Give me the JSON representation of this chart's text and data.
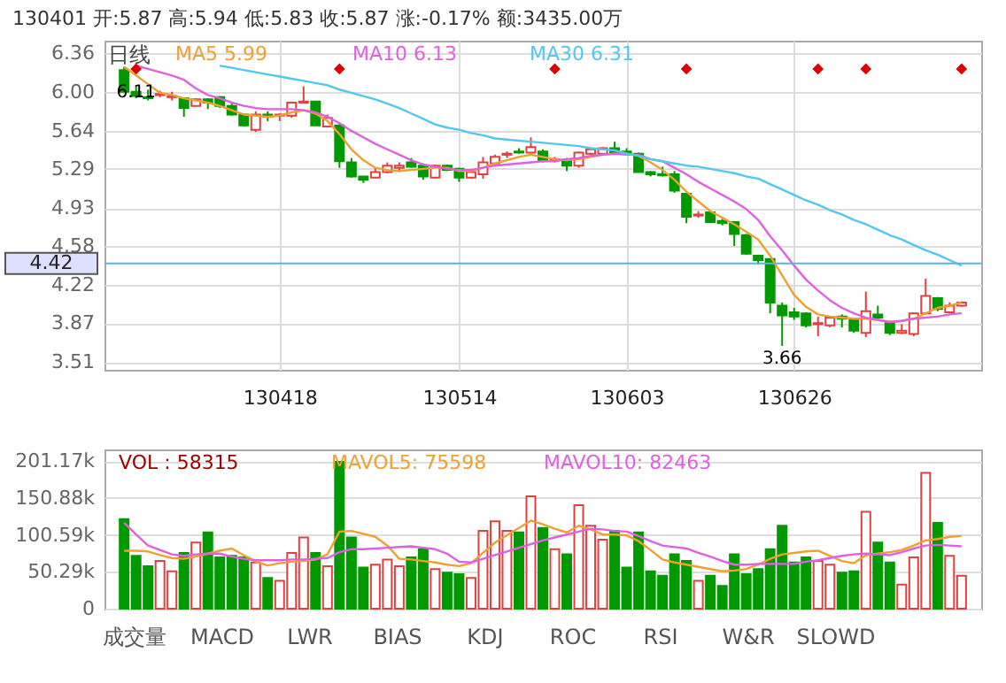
{
  "chart_data": [
    {
      "type": "candlestick",
      "title": "130401    开:5.87    高:5.94    低:5.83    收:5.87    涨:-0.17%    额:3435.00万",
      "categories": [
        null,
        null,
        null,
        null,
        null,
        null,
        null,
        null,
        null,
        null,
        null,
        null,
        null,
        "130418",
        null,
        null,
        null,
        null,
        null,
        null,
        null,
        null,
        null,
        null,
        null,
        null,
        null,
        null,
        "130514",
        null,
        null,
        null,
        null,
        null,
        null,
        null,
        null,
        null,
        null,
        null,
        null,
        null,
        "130603",
        null,
        null,
        null,
        null,
        null,
        null,
        null,
        null,
        null,
        null,
        null,
        null,
        null,
        "130626",
        null,
        null,
        null,
        null,
        null,
        null,
        null,
        null,
        null,
        null,
        null,
        null,
        null,
        null
      ],
      "ohlc": [
        [
          6.2,
          6.23,
          6.0,
          6.0
        ],
        [
          6.0,
          6.05,
          5.94,
          5.96
        ],
        [
          5.95,
          6.02,
          5.92,
          5.94
        ],
        [
          5.97,
          6.01,
          5.95,
          5.98
        ],
        [
          5.95,
          6.0,
          5.92,
          5.96
        ],
        [
          5.94,
          5.94,
          5.77,
          5.85
        ],
        [
          5.87,
          5.94,
          5.87,
          5.93
        ],
        [
          5.93,
          5.94,
          5.84,
          5.9
        ],
        [
          5.95,
          5.96,
          5.85,
          5.87
        ],
        [
          5.87,
          5.9,
          5.78,
          5.79
        ],
        [
          5.79,
          5.8,
          5.68,
          5.69
        ],
        [
          5.65,
          5.82,
          5.63,
          5.79
        ],
        [
          5.79,
          5.82,
          5.73,
          5.77
        ],
        [
          5.78,
          5.8,
          5.73,
          5.79
        ],
        [
          5.78,
          5.91,
          5.76,
          5.9
        ],
        [
          5.9,
          6.05,
          5.9,
          5.91
        ],
        [
          5.91,
          5.91,
          5.69,
          5.69
        ],
        [
          5.68,
          5.79,
          5.67,
          5.76
        ],
        [
          5.69,
          5.7,
          5.3,
          5.36
        ],
        [
          5.35,
          5.39,
          5.21,
          5.22
        ],
        [
          5.22,
          5.22,
          5.16,
          5.19
        ],
        [
          5.21,
          5.3,
          5.21,
          5.26
        ],
        [
          5.26,
          5.35,
          5.25,
          5.32
        ],
        [
          5.3,
          5.35,
          5.26,
          5.32
        ],
        [
          5.35,
          5.39,
          5.3,
          5.31
        ],
        [
          5.32,
          5.34,
          5.19,
          5.22
        ],
        [
          5.21,
          5.33,
          5.2,
          5.32
        ],
        [
          5.32,
          5.33,
          5.27,
          5.28
        ],
        [
          5.29,
          5.3,
          5.17,
          5.21
        ],
        [
          5.21,
          5.27,
          5.2,
          5.26
        ],
        [
          5.24,
          5.4,
          5.2,
          5.35
        ],
        [
          5.34,
          5.42,
          5.32,
          5.4
        ],
        [
          5.42,
          5.45,
          5.39,
          5.43
        ],
        [
          5.45,
          5.48,
          5.43,
          5.44
        ],
        [
          5.44,
          5.58,
          5.43,
          5.49
        ],
        [
          5.45,
          5.47,
          5.35,
          5.37
        ],
        [
          5.37,
          5.4,
          5.35,
          5.38
        ],
        [
          5.37,
          5.39,
          5.27,
          5.32
        ],
        [
          5.32,
          5.45,
          5.3,
          5.44
        ],
        [
          5.43,
          5.48,
          5.42,
          5.47
        ],
        [
          5.43,
          5.49,
          5.42,
          5.48
        ],
        [
          5.48,
          5.54,
          5.42,
          5.43
        ],
        [
          5.45,
          5.48,
          5.42,
          5.43
        ],
        [
          5.43,
          5.44,
          5.26,
          5.26
        ],
        [
          5.26,
          5.27,
          5.22,
          5.24
        ],
        [
          5.24,
          5.31,
          5.22,
          5.23
        ],
        [
          5.24,
          5.27,
          5.07,
          5.09
        ],
        [
          5.06,
          5.07,
          4.79,
          4.85
        ],
        [
          4.86,
          4.9,
          4.84,
          4.87
        ],
        [
          4.89,
          4.9,
          4.79,
          4.8
        ],
        [
          4.81,
          4.83,
          4.77,
          4.79
        ],
        [
          4.8,
          4.8,
          4.58,
          4.69
        ],
        [
          4.68,
          4.69,
          4.5,
          4.51
        ],
        [
          4.49,
          4.5,
          4.41,
          4.45
        ],
        [
          4.46,
          4.46,
          3.96,
          4.06
        ],
        [
          4.03,
          4.06,
          3.66,
          3.94
        ],
        [
          3.97,
          4.01,
          3.9,
          3.93
        ],
        [
          3.96,
          3.97,
          3.83,
          3.85
        ],
        [
          3.86,
          3.93,
          3.75,
          3.87
        ],
        [
          3.85,
          3.93,
          3.83,
          3.92
        ],
        [
          3.93,
          3.95,
          3.83,
          3.91
        ],
        [
          3.9,
          3.91,
          3.78,
          3.8
        ],
        [
          3.78,
          4.16,
          3.74,
          3.98
        ],
        [
          3.95,
          4.03,
          3.91,
          3.92
        ],
        [
          3.88,
          3.89,
          3.76,
          3.78
        ],
        [
          3.78,
          3.86,
          3.77,
          3.8
        ],
        [
          3.77,
          3.97,
          3.75,
          3.96
        ],
        [
          3.96,
          4.28,
          3.95,
          4.12
        ],
        [
          4.1,
          4.11,
          3.98,
          4.0
        ],
        [
          3.97,
          4.06,
          3.96,
          4.03
        ],
        [
          4.03,
          4.07,
          4.02,
          4.06
        ]
      ],
      "colors": [
        "#009900",
        "#009900",
        "#009900",
        "#e04040",
        "#e04040",
        "#009900",
        "#e04040",
        "#009900",
        "#009900",
        "#009900",
        "#009900",
        "#e04040",
        "#009900",
        "#e04040",
        "#e04040",
        "#e04040",
        "#009900",
        "#e04040",
        "#009900",
        "#009900",
        "#009900",
        "#e04040",
        "#e04040",
        "#e04040",
        "#009900",
        "#009900",
        "#e04040",
        "#009900",
        "#009900",
        "#e04040",
        "#e04040",
        "#e04040",
        "#e04040",
        "#009900",
        "#e04040",
        "#009900",
        "#e04040",
        "#009900",
        "#e04040",
        "#e04040",
        "#e04040",
        "#009900",
        "#009900",
        "#009900",
        "#009900",
        "#009900",
        "#009900",
        "#009900",
        "#e04040",
        "#009900",
        "#009900",
        "#009900",
        "#009900",
        "#009900",
        "#009900",
        "#009900",
        "#009900",
        "#009900",
        "#e04040",
        "#e04040",
        "#009900",
        "#009900",
        "#e04040",
        "#009900",
        "#009900",
        "#e04040",
        "#e04040",
        "#e04040",
        "#009900",
        "#e04040",
        "#e04040"
      ],
      "series": [
        {
          "name": "MA5  5.99",
          "type": "line",
          "color": "#f0a030",
          "values": [
            6.23,
            6.15,
            6.07,
            5.99,
            5.97,
            5.94,
            5.92,
            5.9,
            5.87,
            5.83,
            5.79,
            5.78,
            5.77,
            5.78,
            5.81,
            5.83,
            5.8,
            5.73,
            5.61,
            5.47,
            5.37,
            5.3,
            5.28,
            5.27,
            5.28,
            5.29,
            5.3,
            5.3,
            5.27,
            5.27,
            5.3,
            5.34,
            5.37,
            5.4,
            5.42,
            5.4,
            5.38,
            5.37,
            5.38,
            5.4,
            5.42,
            5.43,
            5.43,
            5.41,
            5.35,
            5.28,
            5.19,
            5.08,
            4.99,
            4.9,
            4.84,
            4.78,
            4.71,
            4.64,
            4.49,
            4.31,
            4.13,
            4.02,
            3.95,
            3.93,
            3.92,
            3.91,
            3.91,
            3.9,
            3.88,
            3.89,
            3.91,
            3.96,
            4.01,
            4.03,
            4.06
          ]
        },
        {
          "name": "MA10  6.13",
          "type": "line",
          "color": "#e060e0",
          "values": [
            null,
            6.24,
            6.21,
            6.18,
            6.15,
            6.11,
            6.03,
            5.97,
            5.94,
            5.9,
            5.87,
            5.85,
            5.84,
            5.84,
            5.84,
            5.83,
            5.81,
            5.77,
            5.71,
            5.64,
            5.58,
            5.52,
            5.47,
            5.42,
            5.37,
            5.33,
            5.31,
            5.29,
            5.28,
            5.28,
            5.3,
            5.32,
            5.33,
            5.34,
            5.35,
            5.36,
            5.36,
            5.38,
            5.39,
            5.41,
            5.42,
            5.43,
            5.42,
            5.42,
            5.38,
            5.36,
            5.3,
            5.24,
            5.17,
            5.11,
            5.05,
            4.99,
            4.92,
            4.82,
            4.67,
            4.54,
            4.4,
            4.27,
            4.17,
            4.08,
            4.01,
            3.96,
            3.92,
            3.9,
            3.88,
            3.89,
            3.91,
            3.92,
            3.93,
            3.95,
            3.96
          ]
        },
        {
          "name": "MA30  6.31",
          "type": "line",
          "color": "#50c8f0",
          "values": [
            null,
            null,
            null,
            null,
            null,
            null,
            null,
            null,
            6.24,
            6.22,
            6.2,
            6.18,
            6.16,
            6.14,
            6.12,
            6.1,
            6.08,
            6.06,
            6.02,
            5.99,
            5.96,
            5.93,
            5.89,
            5.85,
            5.8,
            5.75,
            5.7,
            5.67,
            5.65,
            5.62,
            5.6,
            5.57,
            5.56,
            5.55,
            5.54,
            5.53,
            5.52,
            5.51,
            5.5,
            5.48,
            5.47,
            5.46,
            5.43,
            5.41,
            5.38,
            5.36,
            5.34,
            5.32,
            5.31,
            5.29,
            5.27,
            5.25,
            5.22,
            5.2,
            5.15,
            5.1,
            5.05,
            5.0,
            4.96,
            4.91,
            4.87,
            4.82,
            4.78,
            4.73,
            4.68,
            4.64,
            4.59,
            4.54,
            4.5,
            4.45,
            4.4
          ]
        },
        {
          "type": "scatter",
          "marker": "diamond",
          "color": "#dd0000",
          "values": [
            null,
            6.21,
            null,
            null,
            null,
            null,
            null,
            null,
            null,
            null,
            null,
            null,
            null,
            null,
            null,
            null,
            null,
            null,
            6.21,
            null,
            null,
            null,
            null,
            null,
            null,
            null,
            null,
            null,
            null,
            null,
            null,
            null,
            null,
            null,
            null,
            null,
            6.21,
            null,
            null,
            null,
            null,
            null,
            null,
            null,
            null,
            null,
            null,
            6.21,
            null,
            null,
            null,
            null,
            null,
            null,
            null,
            null,
            null,
            null,
            6.21,
            null,
            null,
            null,
            6.21,
            null,
            null,
            null,
            null,
            null,
            null,
            null,
            6.21
          ]
        }
      ],
      "ylim": [
        3.44,
        6.47
      ],
      "yticks": [
        6.36,
        {
          "value": 6,
          "label": "6.00"
        },
        5.64,
        5.29,
        4.93,
        4.58,
        4.22,
        3.87,
        3.51
      ],
      "ref_lines": [
        {
          "axis": "y",
          "value": 4.42,
          "label": "4.42",
          "color": "#5ab4e0"
        }
      ],
      "annotations": [
        "日线",
        {
          "text": "6.11",
          "y": 6.11
        },
        {
          "text": "3.66",
          "y": 3.66
        }
      ],
      "grid": true,
      "legend": "top"
    },
    {
      "type": "bar",
      "categories": [
        null,
        null,
        null,
        null,
        null,
        null,
        null,
        null,
        null,
        null,
        null,
        null,
        null,
        null,
        null,
        null,
        null,
        null,
        null,
        null,
        null,
        null,
        null,
        null,
        null,
        null,
        null,
        null,
        null,
        null,
        null,
        null,
        null,
        null,
        null,
        null,
        null,
        null,
        null,
        null,
        null,
        null,
        null,
        null,
        null,
        null,
        null,
        null,
        null,
        null,
        null,
        null,
        null,
        null,
        null,
        null,
        null,
        null,
        null,
        null,
        null,
        null,
        null,
        null,
        null,
        null,
        null,
        null,
        null,
        null,
        null
      ],
      "series": [
        {
          "name": "VOL :  58315",
          "type": "bar",
          "values": [
            122,
            72,
            58,
            65,
            51,
            76,
            90,
            104,
            70,
            72,
            70,
            63,
            42,
            38,
            76,
            97,
            76,
            58,
            200,
            97,
            56,
            60,
            67,
            58,
            70,
            81,
            54,
            49,
            47,
            42,
            106,
            119,
            106,
            104,
            153,
            110,
            81,
            74,
            141,
            113,
            94,
            106,
            56,
            104,
            51,
            45,
            74,
            65,
            38,
            45,
            31,
            74,
            47,
            54,
            81,
            113,
            63,
            70,
            65,
            60,
            49,
            51,
            132,
            90,
            63,
            33,
            70,
            185,
            117,
            72,
            45
          ],
          "colors": [
            "#009900",
            "#009900",
            "#009900",
            "#e04040",
            "#e04040",
            "#009900",
            "#e04040",
            "#009900",
            "#009900",
            "#009900",
            "#009900",
            "#e04040",
            "#009900",
            "#e04040",
            "#e04040",
            "#e04040",
            "#009900",
            "#e04040",
            "#009900",
            "#009900",
            "#009900",
            "#e04040",
            "#e04040",
            "#e04040",
            "#009900",
            "#009900",
            "#e04040",
            "#009900",
            "#009900",
            "#e04040",
            "#e04040",
            "#e04040",
            "#e04040",
            "#009900",
            "#e04040",
            "#009900",
            "#e04040",
            "#009900",
            "#e04040",
            "#e04040",
            "#e04040",
            "#009900",
            "#009900",
            "#009900",
            "#009900",
            "#009900",
            "#009900",
            "#009900",
            "#e04040",
            "#009900",
            "#009900",
            "#009900",
            "#009900",
            "#009900",
            "#009900",
            "#009900",
            "#009900",
            "#009900",
            "#e04040",
            "#e04040",
            "#009900",
            "#009900",
            "#e04040",
            "#009900",
            "#009900",
            "#e04040",
            "#e04040",
            "#e04040",
            "#009900",
            "#e04040",
            "#e04040"
          ]
        },
        {
          "name": "MAVOL5:  75598",
          "type": "line",
          "color": "#f0a030",
          "values": [
            79,
            79,
            78,
            73,
            69,
            68,
            71,
            75,
            79,
            82,
            73,
            64,
            59,
            62,
            64,
            65,
            67,
            74,
            105,
            106,
            102,
            98,
            86,
            68,
            67,
            65,
            63,
            60,
            58,
            62,
            76,
            90,
            100,
            110,
            120,
            115,
            109,
            104,
            113,
            108,
            101,
            101,
            100,
            92,
            80,
            67,
            63,
            60,
            57,
            54,
            51,
            52,
            54,
            60,
            68,
            74,
            76,
            78,
            79,
            72,
            65,
            62,
            73,
            75,
            77,
            80,
            86,
            93,
            95,
            98,
            99
          ]
        },
        {
          "name": "MAVOL10:  82463",
          "type": "line",
          "color": "#e060e0",
          "values": [
            117,
            101,
            86,
            80,
            74,
            72,
            74,
            75,
            75,
            71,
            68,
            66,
            66,
            66,
            67,
            67,
            68,
            69,
            77,
            81,
            81,
            82,
            83,
            84,
            85,
            83,
            81,
            75,
            64,
            63,
            68,
            73,
            78,
            83,
            88,
            93,
            97,
            101,
            105,
            109,
            108,
            106,
            105,
            99,
            92,
            86,
            84,
            82,
            76,
            71,
            65,
            60,
            60,
            61,
            61,
            61,
            61,
            64,
            66,
            69,
            72,
            74,
            75,
            74,
            73,
            77,
            82,
            86,
            87,
            86,
            85
          ]
        }
      ],
      "ylim": [
        0,
        217
      ],
      "yticks": [
        0,
        {
          "value": 50.29,
          "label": "50.29k"
        },
        {
          "value": 100.59,
          "label": "100.59k"
        },
        {
          "value": 150.88,
          "label": "150.88k"
        },
        {
          "value": 201.17,
          "label": "201.17k"
        }
      ],
      "annotations": [
        "成交量",
        "MACD",
        "LWR",
        "BIAS",
        "KDJ",
        "ROC",
        "RSI",
        "W&R",
        "SLOWD"
      ],
      "grid": true,
      "legend": "top",
      "tick_labels": "y"
    }
  ]
}
